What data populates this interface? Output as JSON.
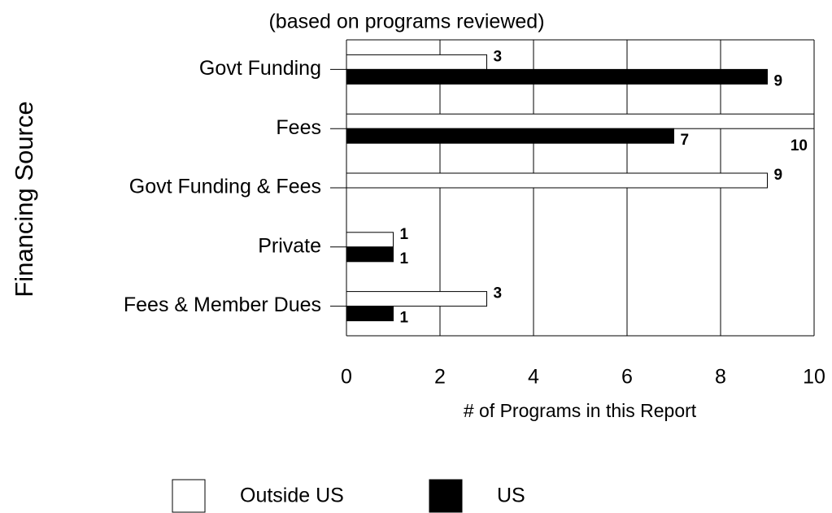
{
  "chart_data": {
    "type": "barh",
    "subtitle": "(based on programs reviewed)",
    "y_label": "Financing Source",
    "x_label": "# of Programs in this Report",
    "categories": [
      "Govt Funding",
      "Fees",
      "Govt Funding & Fees",
      "Private",
      "Fees & Member Dues"
    ],
    "series": [
      {
        "name": "Outside US",
        "color": "#ffffff",
        "values": [
          3,
          10,
          9,
          1,
          3
        ]
      },
      {
        "name": "US",
        "color": "#000000",
        "values": [
          9,
          7,
          null,
          1,
          1
        ]
      }
    ],
    "xlim": [
      0,
      10
    ],
    "xticks": [
      0,
      2,
      4,
      6,
      8,
      10
    ],
    "grid": true,
    "legend": "bottom"
  }
}
